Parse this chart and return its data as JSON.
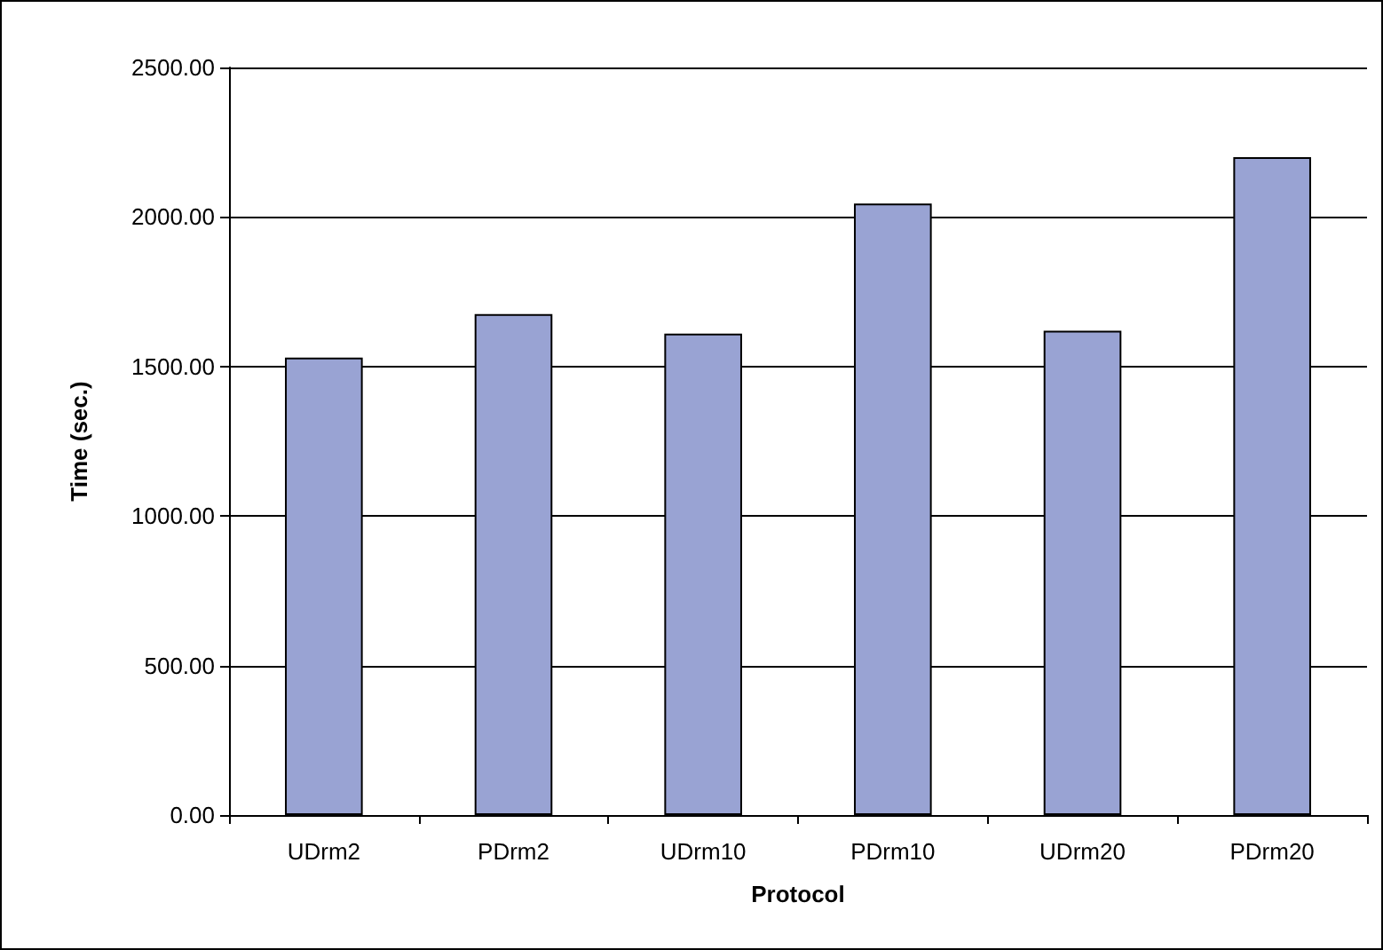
{
  "chart_data": {
    "type": "bar",
    "xlabel": "Protocol",
    "ylabel": "Time (sec.)",
    "categories": [
      "UDrm2",
      "PDrm2",
      "UDrm10",
      "PDrm10",
      "UDrm20",
      "PDrm20"
    ],
    "values": [
      1530,
      1675,
      1610,
      2045,
      1620,
      2200
    ],
    "color": "#99a3d3",
    "ylim": [
      0,
      2500
    ],
    "yticks": [
      {
        "value": 0,
        "label": "0.00"
      },
      {
        "value": 500,
        "label": "500.00"
      },
      {
        "value": 1000,
        "label": "1000.00"
      },
      {
        "value": 1500,
        "label": "1500.00"
      },
      {
        "value": 2000,
        "label": "2000.00"
      },
      {
        "value": 2500,
        "label": "2500.00"
      }
    ],
    "grid": "y"
  }
}
